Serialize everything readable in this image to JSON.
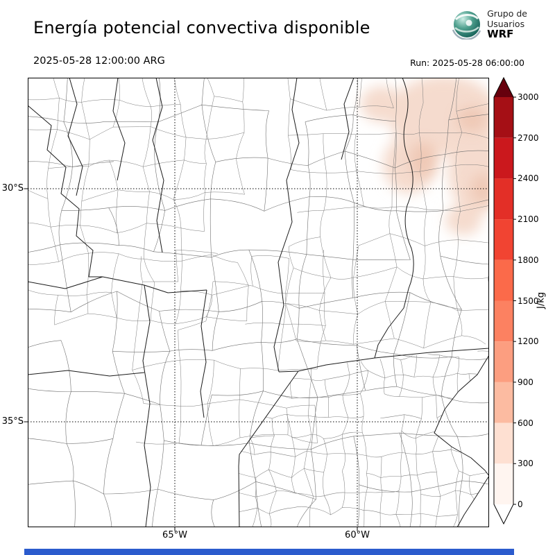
{
  "header": {
    "title": "Energía potencial convectiva disponible",
    "logo": {
      "line1": "Grupo de",
      "line2": "Usuarios",
      "line3": "WRF"
    }
  },
  "times": {
    "valid": "2025-05-28 12:00:00 ARG",
    "run": "Run: 2025-05-28 06:00:00"
  },
  "map": {
    "lat_labels": [
      "30°S",
      "35°S"
    ],
    "lon_labels": [
      "65°W",
      "60°W"
    ]
  },
  "colorbar": {
    "unit": "J/kg",
    "ticks": [
      "3000",
      "2700",
      "2400",
      "2100",
      "1800",
      "1500",
      "1200",
      "900",
      "600",
      "300",
      "0"
    ],
    "colors": [
      "#a50f15",
      "#cb181d",
      "#e32f27",
      "#f14432",
      "#fb6a4a",
      "#fc8161",
      "#fc9e80",
      "#fcbba1",
      "#fee0d2",
      "#fff5f0"
    ],
    "over_color": "#67000d",
    "under_color": "#ffffff"
  },
  "footer": {
    "bar_color": "#2b5bcd"
  },
  "chart_data": {
    "type": "heatmap",
    "title": "Energía potencial convectiva disponible",
    "variable": "CAPE (convective available potential energy)",
    "unit": "J/kg",
    "valid_time": "2025-05-28 12:00:00 ARG",
    "run_time": "Run: 2025-05-28 06:00:00",
    "levels": [
      0,
      300,
      600,
      900,
      1200,
      1500,
      1800,
      2100,
      2400,
      2700,
      3000
    ],
    "colormap": "Reds, white at 0 with pointed over/under arrows",
    "gridlines": {
      "lat": [
        "30°S",
        "35°S"
      ],
      "lon": [
        "65°W",
        "60°W"
      ],
      "style": "dotted"
    },
    "depicted_field": "CAPE near 0 J/kg over almost the whole domain (central Argentina); light pink shading of roughly 100-600 J/kg over the northeastern corner of the map",
    "basemap": "Argentina province and department boundaries, dense departments in Buenos Aires province (lower right)"
  }
}
